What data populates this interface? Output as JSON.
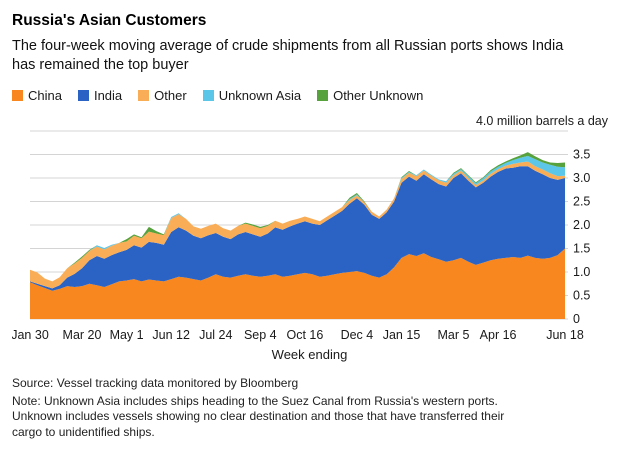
{
  "header": {
    "title": "Russia's Asian Customers",
    "subtitle": "The four-week moving average of crude shipments from all Russian ports shows India has remained the top buyer"
  },
  "chart_data": {
    "type": "area",
    "stacked": true,
    "title": "Russia's Asian Customers",
    "xlabel": "Week ending",
    "ylabel": "million barrels a day",
    "ylim": [
      0,
      4.0
    ],
    "y_ticks": [
      0,
      0.5,
      1,
      1.5,
      2,
      2.5,
      3,
      3.5
    ],
    "y_unit_label": "4.0 million barrels a day",
    "grid": true,
    "legend_position": "top",
    "x_unit": "weeks since Jan 30",
    "x_tick_labels": [
      {
        "label": "Jan 30",
        "week": 0
      },
      {
        "label": "Mar 20",
        "week": 7
      },
      {
        "label": "May 1",
        "week": 13
      },
      {
        "label": "Jun 12",
        "week": 19
      },
      {
        "label": "Jul 24",
        "week": 25
      },
      {
        "label": "Sep 4",
        "week": 31
      },
      {
        "label": "Oct 16",
        "week": 37
      },
      {
        "label": "Dec 4",
        "week": 44
      },
      {
        "label": "Jan 15",
        "week": 50
      },
      {
        "label": "Mar 5",
        "week": 57
      },
      {
        "label": "Apr 16",
        "week": 63
      },
      {
        "label": "Jun 18",
        "week": 72
      }
    ],
    "series": [
      {
        "name": "China",
        "color": "#f7871e",
        "values": [
          0.78,
          0.72,
          0.66,
          0.6,
          0.64,
          0.7,
          0.68,
          0.7,
          0.75,
          0.72,
          0.68,
          0.74,
          0.8,
          0.82,
          0.85,
          0.8,
          0.84,
          0.82,
          0.8,
          0.85,
          0.9,
          0.88,
          0.85,
          0.82,
          0.88,
          0.95,
          0.9,
          0.88,
          0.92,
          0.95,
          0.92,
          0.9,
          0.92,
          0.95,
          0.9,
          0.92,
          0.95,
          0.98,
          0.95,
          0.9,
          0.92,
          0.95,
          0.98,
          1.0,
          1.02,
          0.98,
          0.92,
          0.88,
          0.95,
          1.1,
          1.3,
          1.38,
          1.34,
          1.4,
          1.32,
          1.27,
          1.22,
          1.25,
          1.3,
          1.22,
          1.15,
          1.2,
          1.25,
          1.28,
          1.3,
          1.32,
          1.3,
          1.35,
          1.3,
          1.28,
          1.3,
          1.36,
          1.5
        ]
      },
      {
        "name": "India",
        "color": "#2a63c4",
        "values": [
          0.02,
          0.03,
          0.04,
          0.05,
          0.08,
          0.18,
          0.28,
          0.38,
          0.5,
          0.62,
          0.6,
          0.62,
          0.62,
          0.65,
          0.72,
          0.72,
          0.8,
          0.8,
          0.78,
          1.0,
          1.05,
          1.0,
          0.92,
          0.9,
          0.9,
          0.88,
          0.85,
          0.82,
          0.88,
          0.9,
          0.88,
          0.85,
          0.9,
          1.0,
          1.0,
          1.05,
          1.08,
          1.1,
          1.08,
          1.1,
          1.18,
          1.25,
          1.32,
          1.45,
          1.55,
          1.45,
          1.3,
          1.25,
          1.32,
          1.4,
          1.6,
          1.65,
          1.6,
          1.68,
          1.65,
          1.6,
          1.6,
          1.75,
          1.8,
          1.72,
          1.65,
          1.7,
          1.78,
          1.85,
          1.9,
          1.9,
          1.95,
          1.9,
          1.85,
          1.8,
          1.7,
          1.6,
          1.5
        ]
      },
      {
        "name": "Other",
        "color": "#f9ad57",
        "values": [
          0.25,
          0.24,
          0.16,
          0.15,
          0.17,
          0.2,
          0.22,
          0.22,
          0.2,
          0.2,
          0.2,
          0.2,
          0.2,
          0.18,
          0.2,
          0.2,
          0.22,
          0.2,
          0.2,
          0.3,
          0.28,
          0.25,
          0.2,
          0.2,
          0.2,
          0.2,
          0.18,
          0.18,
          0.18,
          0.18,
          0.18,
          0.18,
          0.16,
          0.14,
          0.13,
          0.12,
          0.1,
          0.1,
          0.1,
          0.08,
          0.08,
          0.08,
          0.08,
          0.08,
          0.06,
          0.05,
          0.06,
          0.05,
          0.06,
          0.07,
          0.08,
          0.08,
          0.1,
          0.08,
          0.08,
          0.08,
          0.08,
          0.06,
          0.06,
          0.06,
          0.05,
          0.05,
          0.06,
          0.06,
          0.06,
          0.08,
          0.08,
          0.1,
          0.1,
          0.1,
          0.1,
          0.08,
          0.05
        ]
      },
      {
        "name": "Unknown Asia",
        "color": "#5bc6e8",
        "values": [
          0,
          0,
          0,
          0,
          0,
          0,
          0,
          0,
          0,
          0.03,
          0.03,
          0.02,
          0,
          0,
          0,
          0,
          0,
          0,
          0,
          0.02,
          0.02,
          0,
          0,
          0,
          0,
          0,
          0,
          0,
          0,
          0,
          0,
          0,
          0,
          0,
          0,
          0,
          0,
          0,
          0,
          0,
          0,
          0,
          0,
          0.02,
          0.02,
          0,
          0,
          0,
          0,
          0,
          0.02,
          0.02,
          0.02,
          0.02,
          0.02,
          0.02,
          0.03,
          0.03,
          0.03,
          0.04,
          0.04,
          0.05,
          0.05,
          0.05,
          0.06,
          0.08,
          0.1,
          0.12,
          0.15,
          0.15,
          0.18,
          0.2,
          0.18
        ]
      },
      {
        "name": "Other Unknown",
        "color": "#57a23d",
        "values": [
          0,
          0,
          0,
          0,
          0,
          0,
          0.02,
          0.03,
          0.02,
          0,
          0,
          0,
          0,
          0.05,
          0.03,
          0.02,
          0.1,
          0.05,
          0.02,
          0,
          0,
          0,
          0,
          0,
          0,
          0,
          0,
          0,
          0,
          0.02,
          0.03,
          0.03,
          0.02,
          0,
          0,
          0,
          0,
          0,
          0,
          0,
          0,
          0,
          0,
          0.03,
          0.03,
          0.02,
          0,
          0,
          0,
          0,
          0.02,
          0.02,
          0,
          0,
          0,
          0,
          0,
          0.02,
          0.02,
          0.02,
          0.02,
          0.02,
          0.03,
          0.03,
          0.03,
          0.04,
          0.05,
          0.08,
          0.06,
          0.05,
          0.05,
          0.08,
          0.1
        ]
      }
    ]
  },
  "footer": {
    "source": "Source: Vessel tracking data monitored by Bloomberg",
    "note": "Note: Unknown Asia includes ships heading to the Suez Canal from Russia's western ports. Unknown includes vessels showing no clear destination and those that have transferred their cargo to unidentified ships."
  }
}
